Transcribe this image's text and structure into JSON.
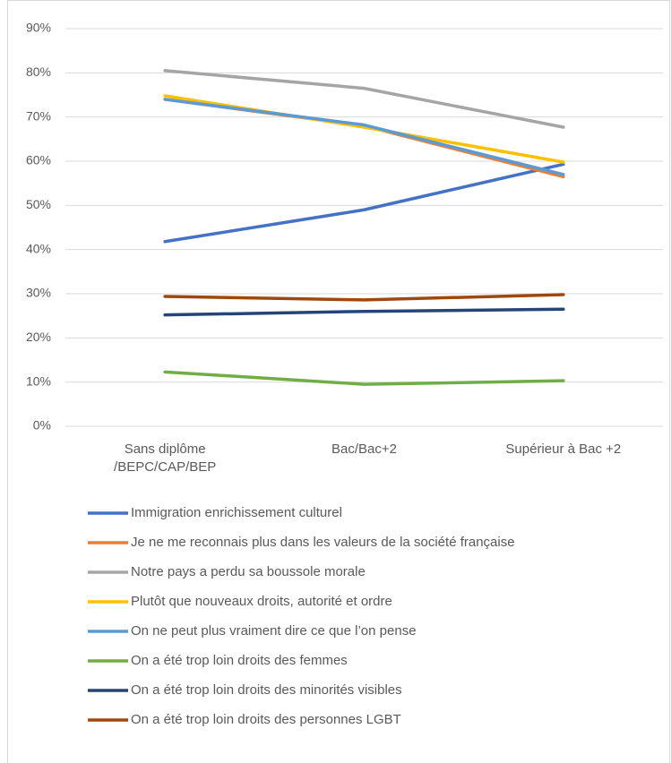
{
  "chart_data": {
    "type": "line",
    "categories": [
      "Sans diplôme /BEPC/CAP/BEP",
      "Bac/Bac+2",
      "Supérieur à Bac +2"
    ],
    "series": [
      {
        "name": "Immigration enrichissement culturel",
        "color": "#4472c4",
        "values": [
          41.8,
          49,
          59.3
        ]
      },
      {
        "name": "Je ne me reconnais plus dans les valeurs de la société française",
        "color": "#ed7d31",
        "values": [
          74,
          68,
          56.5
        ]
      },
      {
        "name": "Notre pays a perdu sa boussole morale",
        "color": "#a5a5a5",
        "values": [
          80.5,
          76.5,
          67.7
        ]
      },
      {
        "name": "Plutôt que nouveaux droits, autorité et ordre",
        "color": "#ffc000",
        "values": [
          74.8,
          67.7,
          59.8
        ]
      },
      {
        "name": "On ne peut plus vraiment dire ce que l’on pense",
        "color": "#5b9bd5",
        "values": [
          74,
          68.2,
          57
        ]
      },
      {
        "name": "On a été trop loin droits des femmes",
        "color": "#70ad47",
        "values": [
          12.3,
          9.5,
          10.3
        ]
      },
      {
        "name": "On a été trop loin droits des minorités visibles",
        "color": "#264478",
        "values": [
          25.2,
          26,
          26.5
        ]
      },
      {
        "name": "On a été trop loin droits des personnes LGBT",
        "color": "#9e480e",
        "values": [
          29.4,
          28.6,
          29.8
        ]
      }
    ],
    "ylim": [
      0,
      90
    ],
    "yticks": [
      {
        "value": 0,
        "label": "0%"
      },
      {
        "value": 10,
        "label": "10%"
      },
      {
        "value": 20,
        "label": "20%"
      },
      {
        "value": 30,
        "label": "30%"
      },
      {
        "value": 40,
        "label": "40%"
      },
      {
        "value": 50,
        "label": "50%"
      },
      {
        "value": 60,
        "label": "60%"
      },
      {
        "value": 70,
        "label": "70%"
      },
      {
        "value": 80,
        "label": "80%"
      },
      {
        "value": 90,
        "label": "90%"
      }
    ],
    "grid": true,
    "legend": "bottom"
  }
}
